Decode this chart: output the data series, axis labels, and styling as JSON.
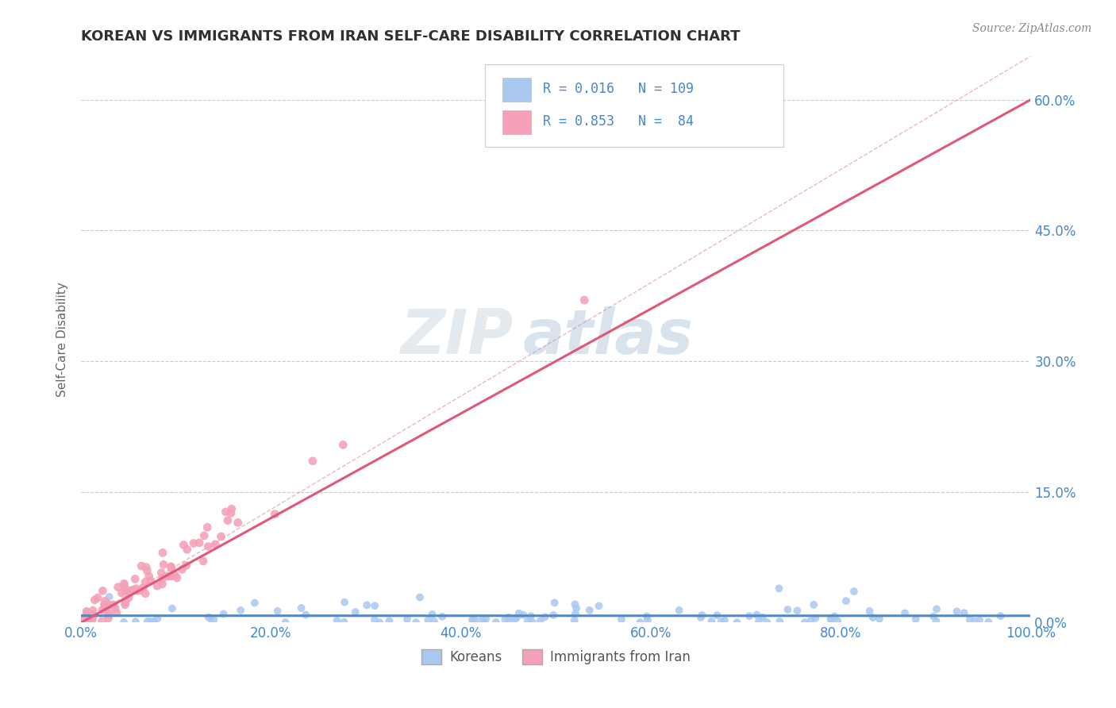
{
  "title": "KOREAN VS IMMIGRANTS FROM IRAN SELF-CARE DISABILITY CORRELATION CHART",
  "source": "Source: ZipAtlas.com",
  "ylabel": "Self-Care Disability",
  "xlabel_ticks": [
    "0.0%",
    "20.0%",
    "40.0%",
    "60.0%",
    "80.0%",
    "100.0%"
  ],
  "ylabel_ticks": [
    "0.0%",
    "15.0%",
    "30.0%",
    "45.0%",
    "60.0%"
  ],
  "xlim": [
    0,
    1.0
  ],
  "ylim": [
    0,
    0.65
  ],
  "legend_r1": "R = 0.016",
  "legend_n1": "N = 109",
  "legend_r2": "R = 0.853",
  "legend_n2": "N =  84",
  "watermark_zip": "ZIP",
  "watermark_atlas": "atlas",
  "koreans_color": "#a8c8f0",
  "iran_color": "#f4a0b8",
  "trend_korean_color": "#5588bb",
  "trend_iran_color": "#e05878",
  "diagonal_color": "#e8b0bc",
  "background_color": "#ffffff",
  "title_color": "#303030",
  "tick_color": "#4488cc",
  "source_color": "#888888",
  "grid_color": "#cccccc",
  "legend_box_edge": "#cccccc",
  "bottom_legend_color": "#555555"
}
